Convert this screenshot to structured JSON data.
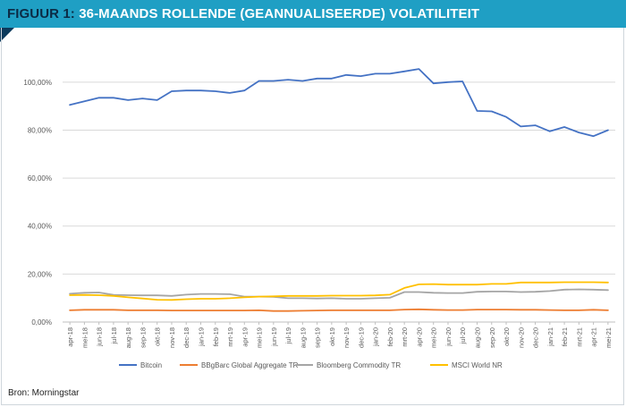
{
  "header": {
    "label": "FIGUUR 1:",
    "title": "36-MAANDS ROLLENDE (GEANNUALISEERDE) VOLATILITEIT"
  },
  "source": "Bron: Morningstar",
  "colors": {
    "header_bg": "#1f9fc4",
    "bitcoin": "#4472c4",
    "bbgbarc": "#ed7d31",
    "bloomberg": "#a5a5a5",
    "msci": "#ffc000"
  },
  "chart_data": {
    "type": "line",
    "ylim": [
      0,
      110
    ],
    "yticks": [
      0,
      20,
      40,
      60,
      80,
      100
    ],
    "ytick_labels": [
      "0,00%",
      "20,00%",
      "40,00%",
      "60,00%",
      "80,00%",
      "100,00%"
    ],
    "grid": "horizontal",
    "legend": "bottom",
    "x": [
      "apr-18",
      "mei-18",
      "jun-18",
      "jul-18",
      "aug-18",
      "sep-18",
      "okt-18",
      "nov-18",
      "dec-18",
      "jan-19",
      "feb-19",
      "mrt-19",
      "apr-19",
      "mei-19",
      "jun-19",
      "jul-19",
      "aug-19",
      "sep-19",
      "okt-19",
      "nov-19",
      "dec-19",
      "jan-20",
      "feb-20",
      "mrt-20",
      "apr-20",
      "mei-20",
      "jun-20",
      "jul-20",
      "aug-20",
      "sep-20",
      "okt-20",
      "nov-20",
      "dec-20",
      "jan-21",
      "feb-21",
      "mrt-21",
      "apr-21",
      "mei-21"
    ],
    "series": [
      {
        "name": "Bitcoin",
        "color": "#4472c4",
        "values": [
          90.5,
          92.0,
          93.5,
          93.5,
          92.5,
          93.2,
          92.5,
          96.2,
          96.5,
          96.5,
          96.2,
          95.5,
          96.5,
          100.5,
          100.5,
          101.0,
          100.5,
          101.5,
          101.5,
          103.0,
          102.5,
          103.5,
          103.5,
          104.5,
          105.5,
          99.5,
          100.0,
          100.3,
          88.0,
          87.8,
          85.5,
          81.5,
          82.0,
          79.5,
          81.3,
          79.0,
          77.5,
          80.0
        ]
      },
      {
        "name": "BBgBarc Global Aggregate TR",
        "color": "#ed7d31",
        "values": [
          4.9,
          5.1,
          5.1,
          5.1,
          4.9,
          4.9,
          4.9,
          4.8,
          4.8,
          4.8,
          4.8,
          4.8,
          4.8,
          4.9,
          4.6,
          4.6,
          4.7,
          4.8,
          4.9,
          4.9,
          4.9,
          4.9,
          4.9,
          5.2,
          5.3,
          5.1,
          5.0,
          5.0,
          5.2,
          5.2,
          5.2,
          5.1,
          5.1,
          5.0,
          4.9,
          4.9,
          5.1,
          4.9
        ]
      },
      {
        "name": "Bloomberg Commodity TR",
        "color": "#a5a5a5",
        "values": [
          11.8,
          12.2,
          12.3,
          11.3,
          11.2,
          11.1,
          11.1,
          10.9,
          11.4,
          11.7,
          11.7,
          11.6,
          10.6,
          10.6,
          10.5,
          9.9,
          9.9,
          9.8,
          9.9,
          9.7,
          9.7,
          9.9,
          10.1,
          12.5,
          12.5,
          12.2,
          12.1,
          12.1,
          12.6,
          12.7,
          12.7,
          12.5,
          12.6,
          12.9,
          13.5,
          13.6,
          13.5,
          13.3
        ]
      },
      {
        "name": "MSCI World NR",
        "color": "#ffc000",
        "values": [
          11.2,
          11.3,
          11.2,
          10.9,
          10.3,
          9.8,
          9.3,
          9.2,
          9.5,
          9.7,
          9.7,
          9.9,
          10.3,
          10.6,
          10.7,
          10.9,
          10.9,
          10.9,
          11.0,
          11.0,
          11.0,
          11.1,
          11.4,
          14.2,
          15.7,
          15.8,
          15.6,
          15.6,
          15.6,
          15.9,
          15.9,
          16.5,
          16.5,
          16.5,
          16.6,
          16.6,
          16.6,
          16.5
        ]
      }
    ]
  }
}
